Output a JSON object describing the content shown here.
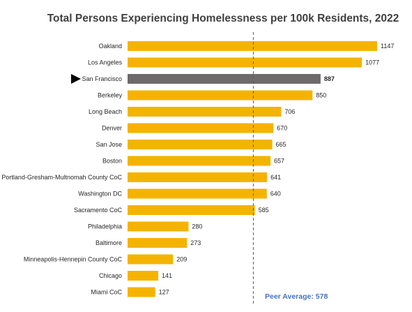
{
  "chart_data": {
    "type": "bar",
    "orientation": "horizontal",
    "title": "Total Persons Experiencing Homelessness per 100k Residents, 2022",
    "categories": [
      "Oakland",
      "Los Angeles",
      "San Francisco",
      "Berkeley",
      "Long Beach",
      "Denver",
      "San Jose",
      "Boston",
      "Portland-Gresham-Multnomah County CoC",
      "Washington DC",
      "Sacramento CoC",
      "Philadelphia",
      "Baltimore",
      "Minneapolis-Hennepin County CoC",
      "Chicago",
      "Miami  CoC"
    ],
    "values": [
      1147,
      1077,
      887,
      850,
      706,
      670,
      665,
      657,
      641,
      640,
      585,
      280,
      273,
      209,
      141,
      127
    ],
    "highlighted_category": "San Francisco",
    "reference_line": {
      "label": "Peer Average: 578",
      "value": 578
    },
    "xlim": [
      0,
      1147
    ],
    "grid": false,
    "legend": "none",
    "colors": {
      "bar": "#F5B301",
      "bar_highlight": "#6E6A6B",
      "peer_line": "#595959",
      "peer_label": "#4472C4",
      "marker": "#000000"
    }
  }
}
